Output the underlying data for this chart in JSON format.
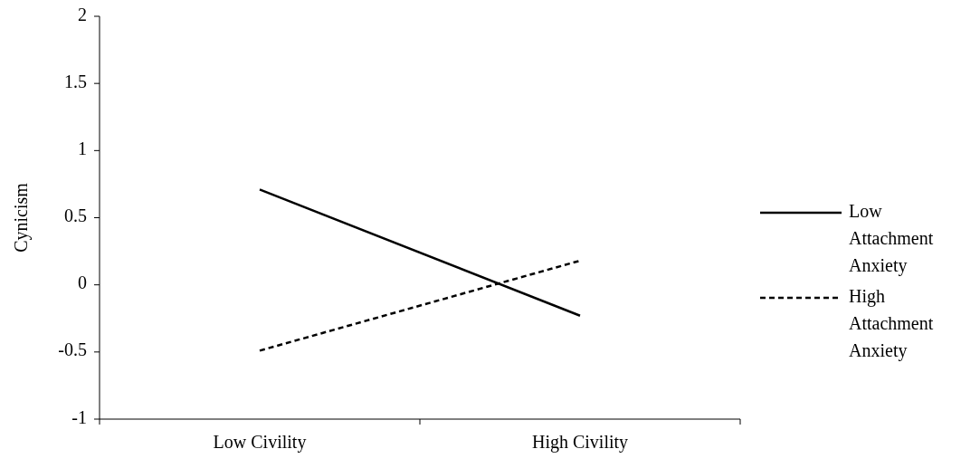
{
  "chart_data": {
    "type": "line",
    "ylabel": "Cynicism",
    "categories": [
      "Low Civility",
      "High Civility"
    ],
    "series": [
      {
        "name": "Low Attachment Anxiety",
        "color": "#000000",
        "values": [
          0.71,
          -0.23
        ],
        "line_style": "solid"
      },
      {
        "name": "High Attachment Anxiety",
        "color": "#000000",
        "values": [
          -0.49,
          0.18
        ],
        "line_style": "dashed"
      }
    ],
    "ylim": [
      -1,
      2
    ],
    "yticks": [
      -1,
      -0.5,
      0,
      0.5,
      1,
      1.5,
      2
    ],
    "grid": false,
    "legend": "right",
    "marker": "none"
  }
}
